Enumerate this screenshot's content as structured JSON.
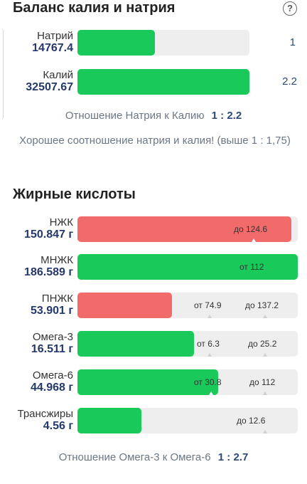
{
  "balance": {
    "title": "Баланс калия и натрия",
    "help_icon": "question-circle-icon",
    "sodium": {
      "label": "Натрий",
      "value": "14767.4",
      "ratio": "1",
      "fill_fraction": 0.45
    },
    "potassium": {
      "label": "Калий",
      "value": "32507.67",
      "ratio": "2.2",
      "fill_fraction": 1.0
    },
    "ratio_label": "Отношение Натрия к Калию",
    "ratio_value": "1 : 2.2",
    "note": "Хорошее соотношение натрия и калия! (выше 1 : 1,75)"
  },
  "fats": {
    "title": "Жирные кислоты",
    "rows": [
      {
        "label": "НЖК",
        "value": "150.847 г",
        "fill_fraction": 0.97,
        "status": "red",
        "markers": [
          "до 124.6"
        ]
      },
      {
        "label": "МНЖК",
        "value": "186.589 г",
        "fill_fraction": 1.0,
        "status": "green",
        "markers": [
          "от 112"
        ]
      },
      {
        "label": "ПНЖК",
        "value": "53.901 г",
        "fill_fraction": 0.43,
        "status": "red",
        "markers": [
          "от 74.9",
          "до 137.2"
        ]
      },
      {
        "label": "Омега-3",
        "value": "16.511 г",
        "fill_fraction": 0.53,
        "status": "green",
        "markers": [
          "от 6.3",
          "до 25.2"
        ]
      },
      {
        "label": "Омега-6",
        "value": "44.968 г",
        "fill_fraction": 0.64,
        "status": "green",
        "markers": [
          "от 30.8",
          "до 112"
        ]
      },
      {
        "label": "Трансжиры",
        "value": "4.56 г",
        "fill_fraction": 0.29,
        "status": "green",
        "markers": [
          "до 12.6"
        ]
      }
    ],
    "ratio_label": "Отношение Омега-3 к Омега-6",
    "ratio_value": "1 : 2.7"
  },
  "colors": {
    "green": "#19c95a",
    "red": "#f26b6b",
    "track": "#eeeeee",
    "value_text": "#24386b"
  }
}
